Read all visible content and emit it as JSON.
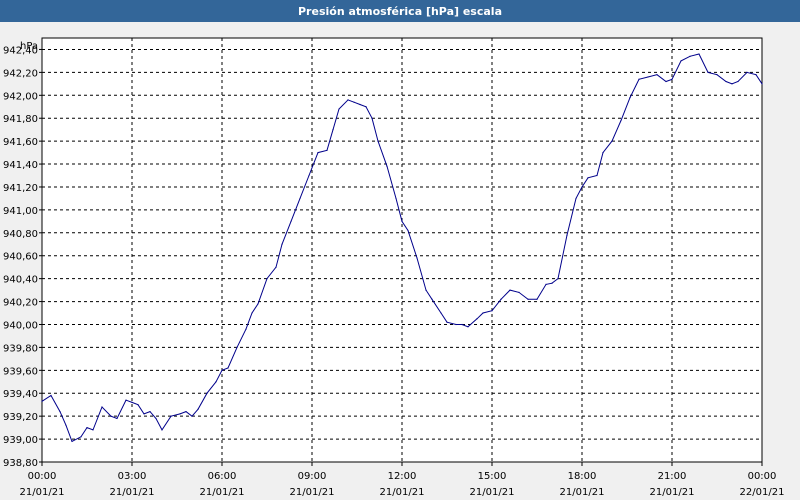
{
  "header": {
    "title": "Presión atmosférica [hPa] escala"
  },
  "chart_data": {
    "type": "line",
    "ylabel": "hPa",
    "ylim": [
      938.8,
      942.5
    ],
    "y_ticks": [
      "938,80",
      "939,00",
      "939,20",
      "939,40",
      "939,60",
      "939,80",
      "940,00",
      "940,20",
      "940,40",
      "940,60",
      "940,80",
      "941,00",
      "941,20",
      "941,40",
      "941,60",
      "941,80",
      "942,00",
      "942,20",
      "942,40"
    ],
    "y_tick_values": [
      938.8,
      939.0,
      939.2,
      939.4,
      939.6,
      939.8,
      940.0,
      940.2,
      940.4,
      940.6,
      940.8,
      941.0,
      941.2,
      941.4,
      941.6,
      941.8,
      942.0,
      942.2,
      942.4
    ],
    "xlim": [
      0,
      24
    ],
    "x_ticks": [
      {
        "time": "00:00",
        "date": "21/01/21"
      },
      {
        "time": "03:00",
        "date": "21/01/21"
      },
      {
        "time": "06:00",
        "date": "21/01/21"
      },
      {
        "time": "09:00",
        "date": "21/01/21"
      },
      {
        "time": "12:00",
        "date": "21/01/21"
      },
      {
        "time": "15:00",
        "date": "21/01/21"
      },
      {
        "time": "18:00",
        "date": "21/01/21"
      },
      {
        "time": "21:00",
        "date": "21/01/21"
      },
      {
        "time": "00:00",
        "date": "22/01/21"
      }
    ],
    "x_tick_hours": [
      0,
      3,
      6,
      9,
      12,
      15,
      18,
      21,
      24
    ],
    "grid": true,
    "line_color": "#00008b",
    "series": [
      {
        "x": [
          0,
          0.3,
          0.6,
          0.8,
          1.0,
          1.3,
          1.5,
          1.7,
          2.0,
          2.3,
          2.5,
          2.8,
          3.0,
          3.2,
          3.4,
          3.6,
          3.8,
          4.0,
          4.3,
          4.6,
          4.8,
          5.0,
          5.2,
          5.5,
          5.8,
          6.0,
          6.2,
          6.5,
          6.8,
          7.0,
          7.2,
          7.5,
          7.8,
          8.0,
          8.3,
          8.6,
          8.9,
          9.2,
          9.5,
          9.7,
          9.9,
          10.2,
          10.4,
          10.6,
          10.8,
          11.0,
          11.2,
          11.5,
          11.8,
          12.0,
          12.2,
          12.5,
          12.8,
          13.0,
          13.3,
          13.5,
          13.8,
          14.0,
          14.2,
          14.5,
          14.7,
          15.0,
          15.3,
          15.6,
          15.9,
          16.2,
          16.5,
          16.8,
          17.0,
          17.2,
          17.5,
          17.8,
          18.0,
          18.2,
          18.5,
          18.7,
          19.0,
          19.3,
          19.6,
          19.9,
          20.2,
          20.5,
          20.8,
          21.0,
          21.3,
          21.6,
          21.9,
          22.2,
          22.5,
          22.8,
          23.0,
          23.2,
          23.5,
          23.8,
          24.0
        ],
        "y": [
          939.33,
          939.38,
          939.24,
          939.12,
          938.98,
          939.02,
          939.1,
          939.08,
          939.28,
          939.2,
          939.18,
          939.34,
          939.32,
          939.3,
          939.22,
          939.24,
          939.18,
          939.08,
          939.2,
          939.22,
          939.24,
          939.2,
          939.26,
          939.4,
          939.5,
          939.6,
          939.62,
          939.8,
          939.96,
          940.1,
          940.18,
          940.4,
          940.5,
          940.7,
          940.9,
          941.1,
          941.3,
          941.5,
          941.52,
          941.7,
          941.88,
          941.96,
          941.94,
          941.92,
          941.9,
          941.8,
          941.6,
          941.38,
          941.1,
          940.9,
          940.82,
          940.58,
          940.3,
          940.22,
          940.1,
          940.02,
          940.0,
          940.0,
          939.98,
          940.05,
          940.1,
          940.12,
          940.22,
          940.3,
          940.28,
          940.22,
          940.22,
          940.35,
          940.36,
          940.4,
          940.78,
          941.1,
          941.2,
          941.28,
          941.3,
          941.5,
          941.6,
          941.78,
          941.98,
          942.14,
          942.16,
          942.18,
          942.12,
          942.14,
          942.3,
          942.34,
          942.36,
          942.2,
          942.18,
          942.12,
          942.1,
          942.12,
          942.2,
          942.18,
          942.1
        ]
      }
    ]
  }
}
